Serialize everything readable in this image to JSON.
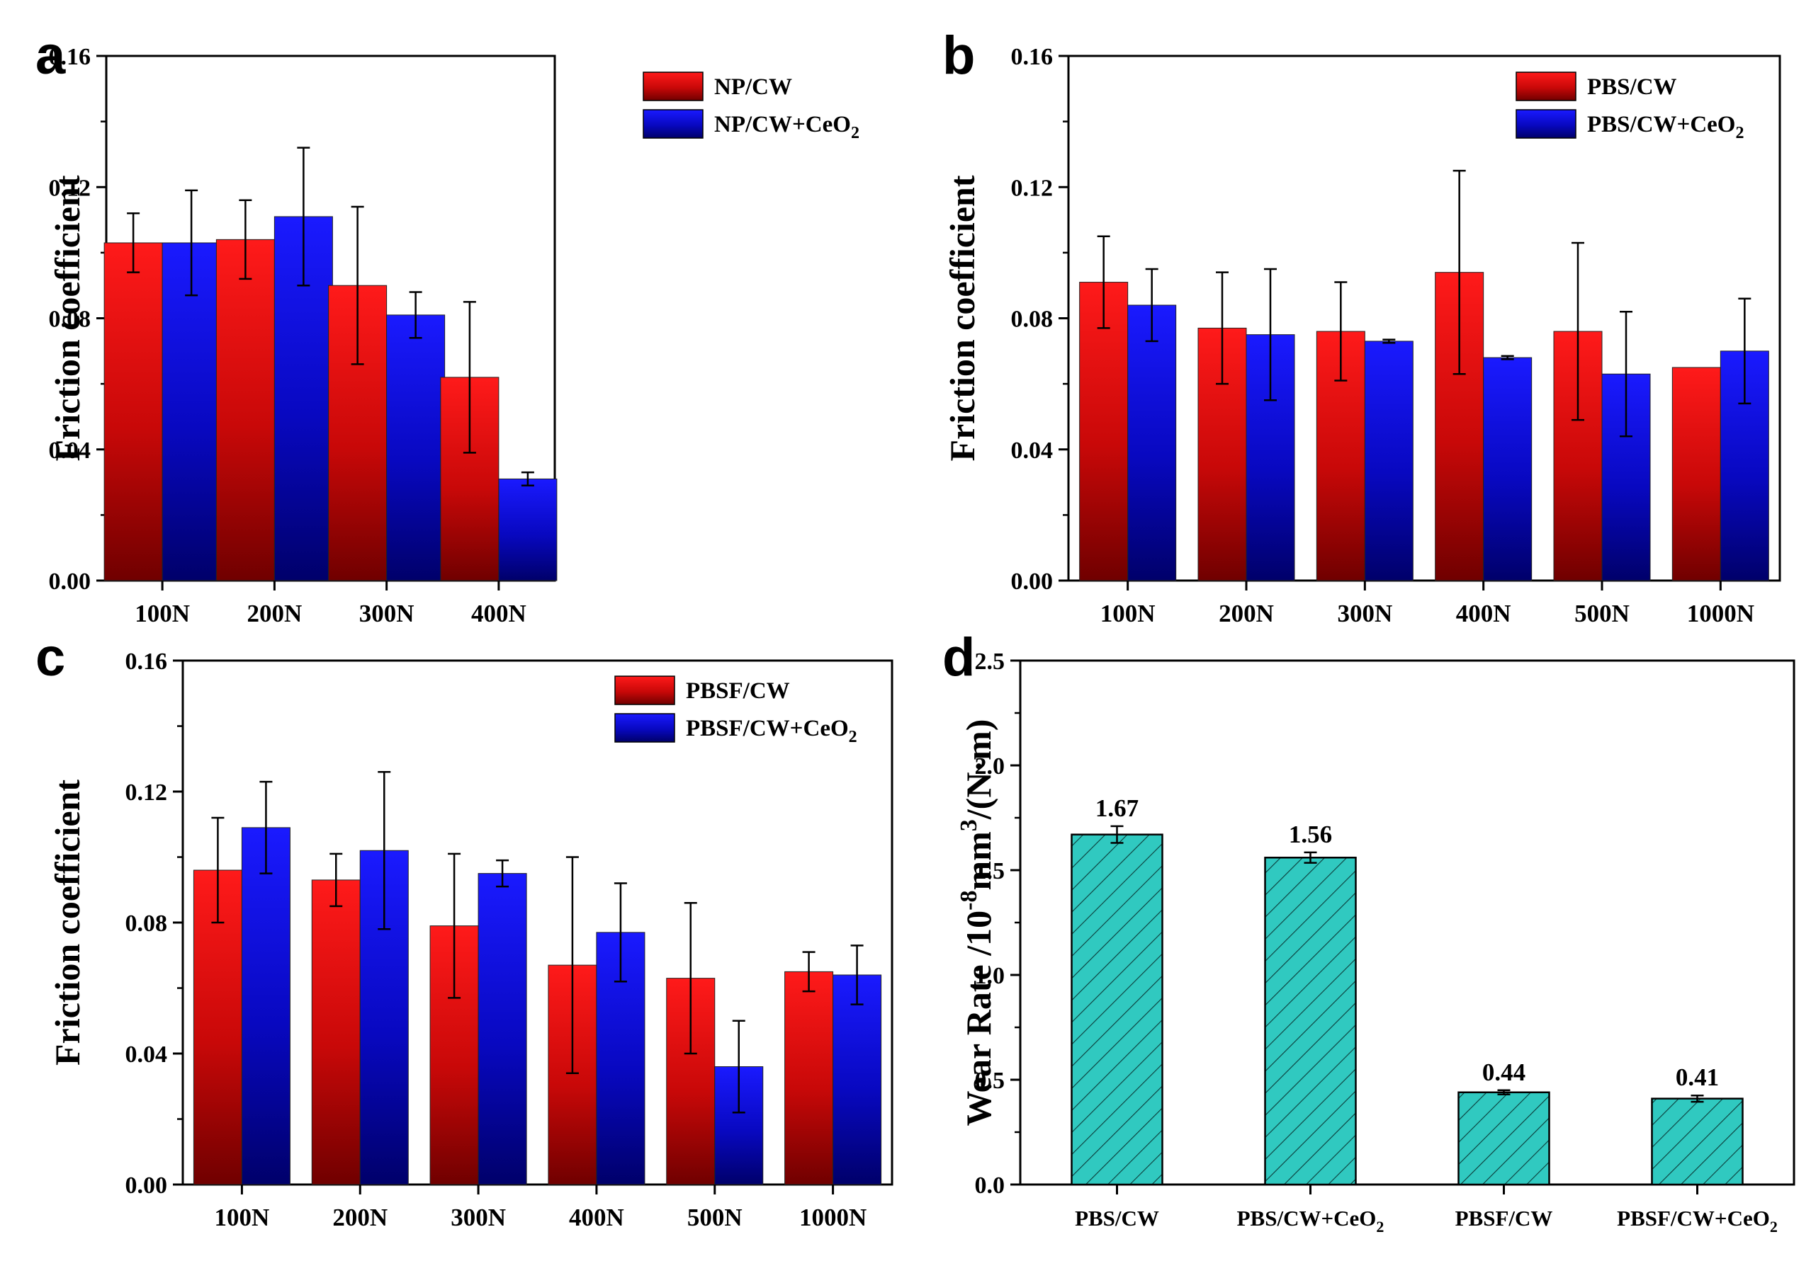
{
  "figure_colors": {
    "red_top": "#ff1a1a",
    "red_bottom": "#700000",
    "blue_top": "#1a1aff",
    "blue_bottom": "#00006a",
    "teal_fill": "#30c9c0",
    "axis": "#000000"
  },
  "chart_data": [
    {
      "panel": "a",
      "type": "bar",
      "ylabel": "Friction coefficient",
      "xlabel": "",
      "ylim": [
        0,
        0.16
      ],
      "yticks": [
        "0.00",
        "0.04",
        "0.08",
        "0.12",
        "0.16"
      ],
      "categories": [
        "100N",
        "200N",
        "300N",
        "400N"
      ],
      "legend_position": "top-right",
      "series": [
        {
          "name": "NP/CW",
          "color": "red",
          "values": [
            0.103,
            0.104,
            0.09,
            0.062
          ],
          "errors": [
            0.009,
            0.012,
            0.024,
            0.023
          ]
        },
        {
          "name": "NP/CW+CeO",
          "subscript": "2",
          "color": "blue",
          "values": [
            0.103,
            0.111,
            0.081,
            0.031
          ],
          "errors": [
            0.016,
            0.021,
            0.007,
            0.002
          ]
        }
      ]
    },
    {
      "panel": "b",
      "type": "bar",
      "ylabel": "Friction coefficient",
      "xlabel": "",
      "ylim": [
        0,
        0.16
      ],
      "yticks": [
        "0.00",
        "0.04",
        "0.08",
        "0.12",
        "0.16"
      ],
      "categories": [
        "100N",
        "200N",
        "300N",
        "400N",
        "500N",
        "1000N"
      ],
      "legend_position": "top-right",
      "series": [
        {
          "name": "PBS/CW",
          "color": "red",
          "values": [
            0.091,
            0.077,
            0.076,
            0.094,
            0.076,
            0.065
          ],
          "errors": [
            0.014,
            0.017,
            0.015,
            0.031,
            0.027,
            0
          ]
        },
        {
          "name": "PBS/CW+CeO",
          "subscript": "2",
          "color": "blue",
          "values": [
            0.084,
            0.075,
            0.073,
            0.068,
            0.063,
            0.07
          ],
          "errors": [
            0.011,
            0.02,
            0.0005,
            0.0005,
            0.019,
            0.016
          ]
        }
      ]
    },
    {
      "panel": "c",
      "type": "bar",
      "ylabel": "Friction coefficient",
      "xlabel": "",
      "ylim": [
        0,
        0.16
      ],
      "yticks": [
        "0.00",
        "0.04",
        "0.08",
        "0.12",
        "0.16"
      ],
      "categories": [
        "100N",
        "200N",
        "300N",
        "400N",
        "500N",
        "1000N"
      ],
      "legend_position": "top-right",
      "series": [
        {
          "name": "PBSF/CW",
          "color": "red",
          "values": [
            0.096,
            0.093,
            0.079,
            0.067,
            0.063,
            0.065
          ],
          "errors": [
            0.016,
            0.008,
            0.022,
            0.033,
            0.023,
            0.006
          ]
        },
        {
          "name": "PBSF/CW+CeO",
          "subscript": "2",
          "color": "blue",
          "values": [
            0.109,
            0.102,
            0.095,
            0.077,
            0.036,
            0.064
          ],
          "errors": [
            0.014,
            0.024,
            0.004,
            0.015,
            0.014,
            0.009
          ]
        }
      ]
    },
    {
      "panel": "d",
      "type": "bar",
      "ylabel_parts": [
        "Wear Rate /10",
        "-8",
        "mm",
        "3",
        "/(N·m)"
      ],
      "xlabel": "",
      "ylim": [
        0,
        2.5
      ],
      "yticks": [
        "0.0",
        "0.5",
        "1.0",
        "1.5",
        "2.0",
        "2.5"
      ],
      "categories": [
        {
          "text": "PBS/CW",
          "sub": ""
        },
        {
          "text": "PBS/CW+CeO",
          "sub": "2"
        },
        {
          "text": "PBSF/CW",
          "sub": ""
        },
        {
          "text": "PBSF/CW+CeO",
          "sub": "2"
        }
      ],
      "values": [
        1.67,
        1.56,
        0.44,
        0.41
      ],
      "errors": [
        0.04,
        0.025,
        0.01,
        0.015
      ],
      "value_labels": [
        "1.67",
        "1.56",
        "0.44",
        "0.41"
      ],
      "pattern": "hatched"
    }
  ]
}
